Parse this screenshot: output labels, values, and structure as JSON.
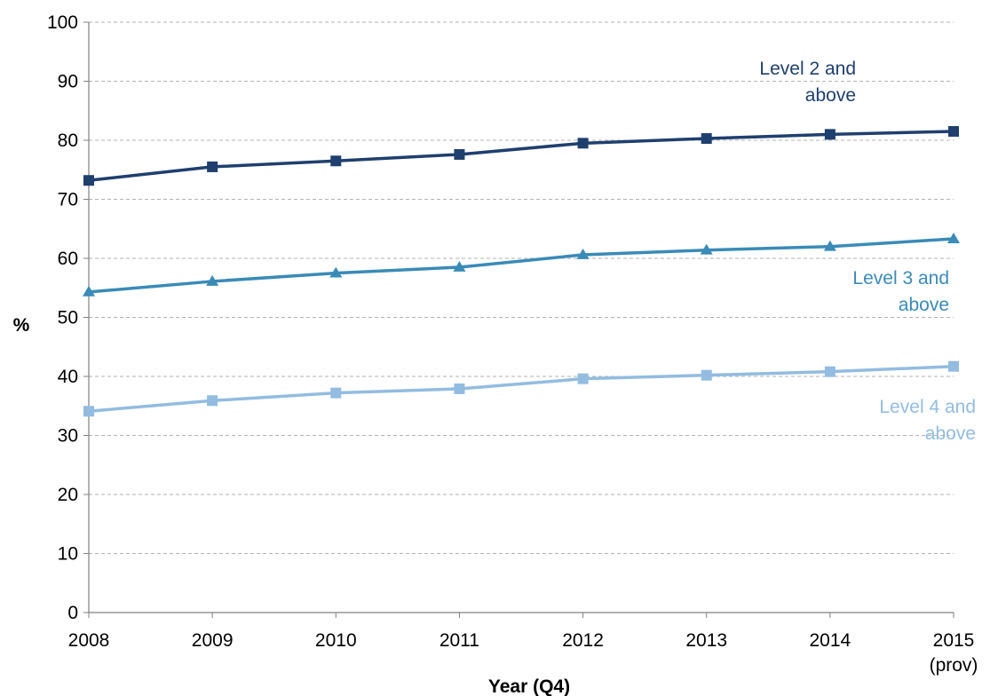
{
  "chart_data": {
    "type": "line",
    "title": "",
    "xlabel": "Year (Q4)",
    "ylabel": "%",
    "x": [
      "2008",
      "2009",
      "2010",
      "2011",
      "2012",
      "2013",
      "2014",
      "2015"
    ],
    "x_sublabels": [
      "",
      "",
      "",
      "",
      "",
      "",
      "",
      "(prov)"
    ],
    "ylim": [
      0,
      100
    ],
    "yticks": [
      0,
      10,
      20,
      30,
      40,
      50,
      60,
      70,
      80,
      90,
      100
    ],
    "grid": "horizontal dashed",
    "legend": "inline labels",
    "series": [
      {
        "name": "Level 2 and above",
        "label_lines": [
          "Level 2 and",
          "above"
        ],
        "color": "#1f3f6e",
        "marker": "square",
        "values": [
          73.2,
          75.5,
          76.5,
          77.6,
          79.5,
          80.3,
          81.0,
          81.5
        ]
      },
      {
        "name": "Level 3 and above",
        "label_lines": [
          "Level 3 and",
          "above"
        ],
        "color": "#3a8bb7",
        "marker": "triangle",
        "values": [
          54.3,
          56.1,
          57.5,
          58.5,
          60.6,
          61.4,
          62.0,
          63.3
        ]
      },
      {
        "name": "Level 4 and above",
        "label_lines": [
          "Level 4 and",
          "above"
        ],
        "color": "#93bce0",
        "marker": "square",
        "values": [
          34.1,
          35.9,
          37.2,
          37.9,
          39.6,
          40.2,
          40.8,
          41.7
        ]
      }
    ]
  }
}
